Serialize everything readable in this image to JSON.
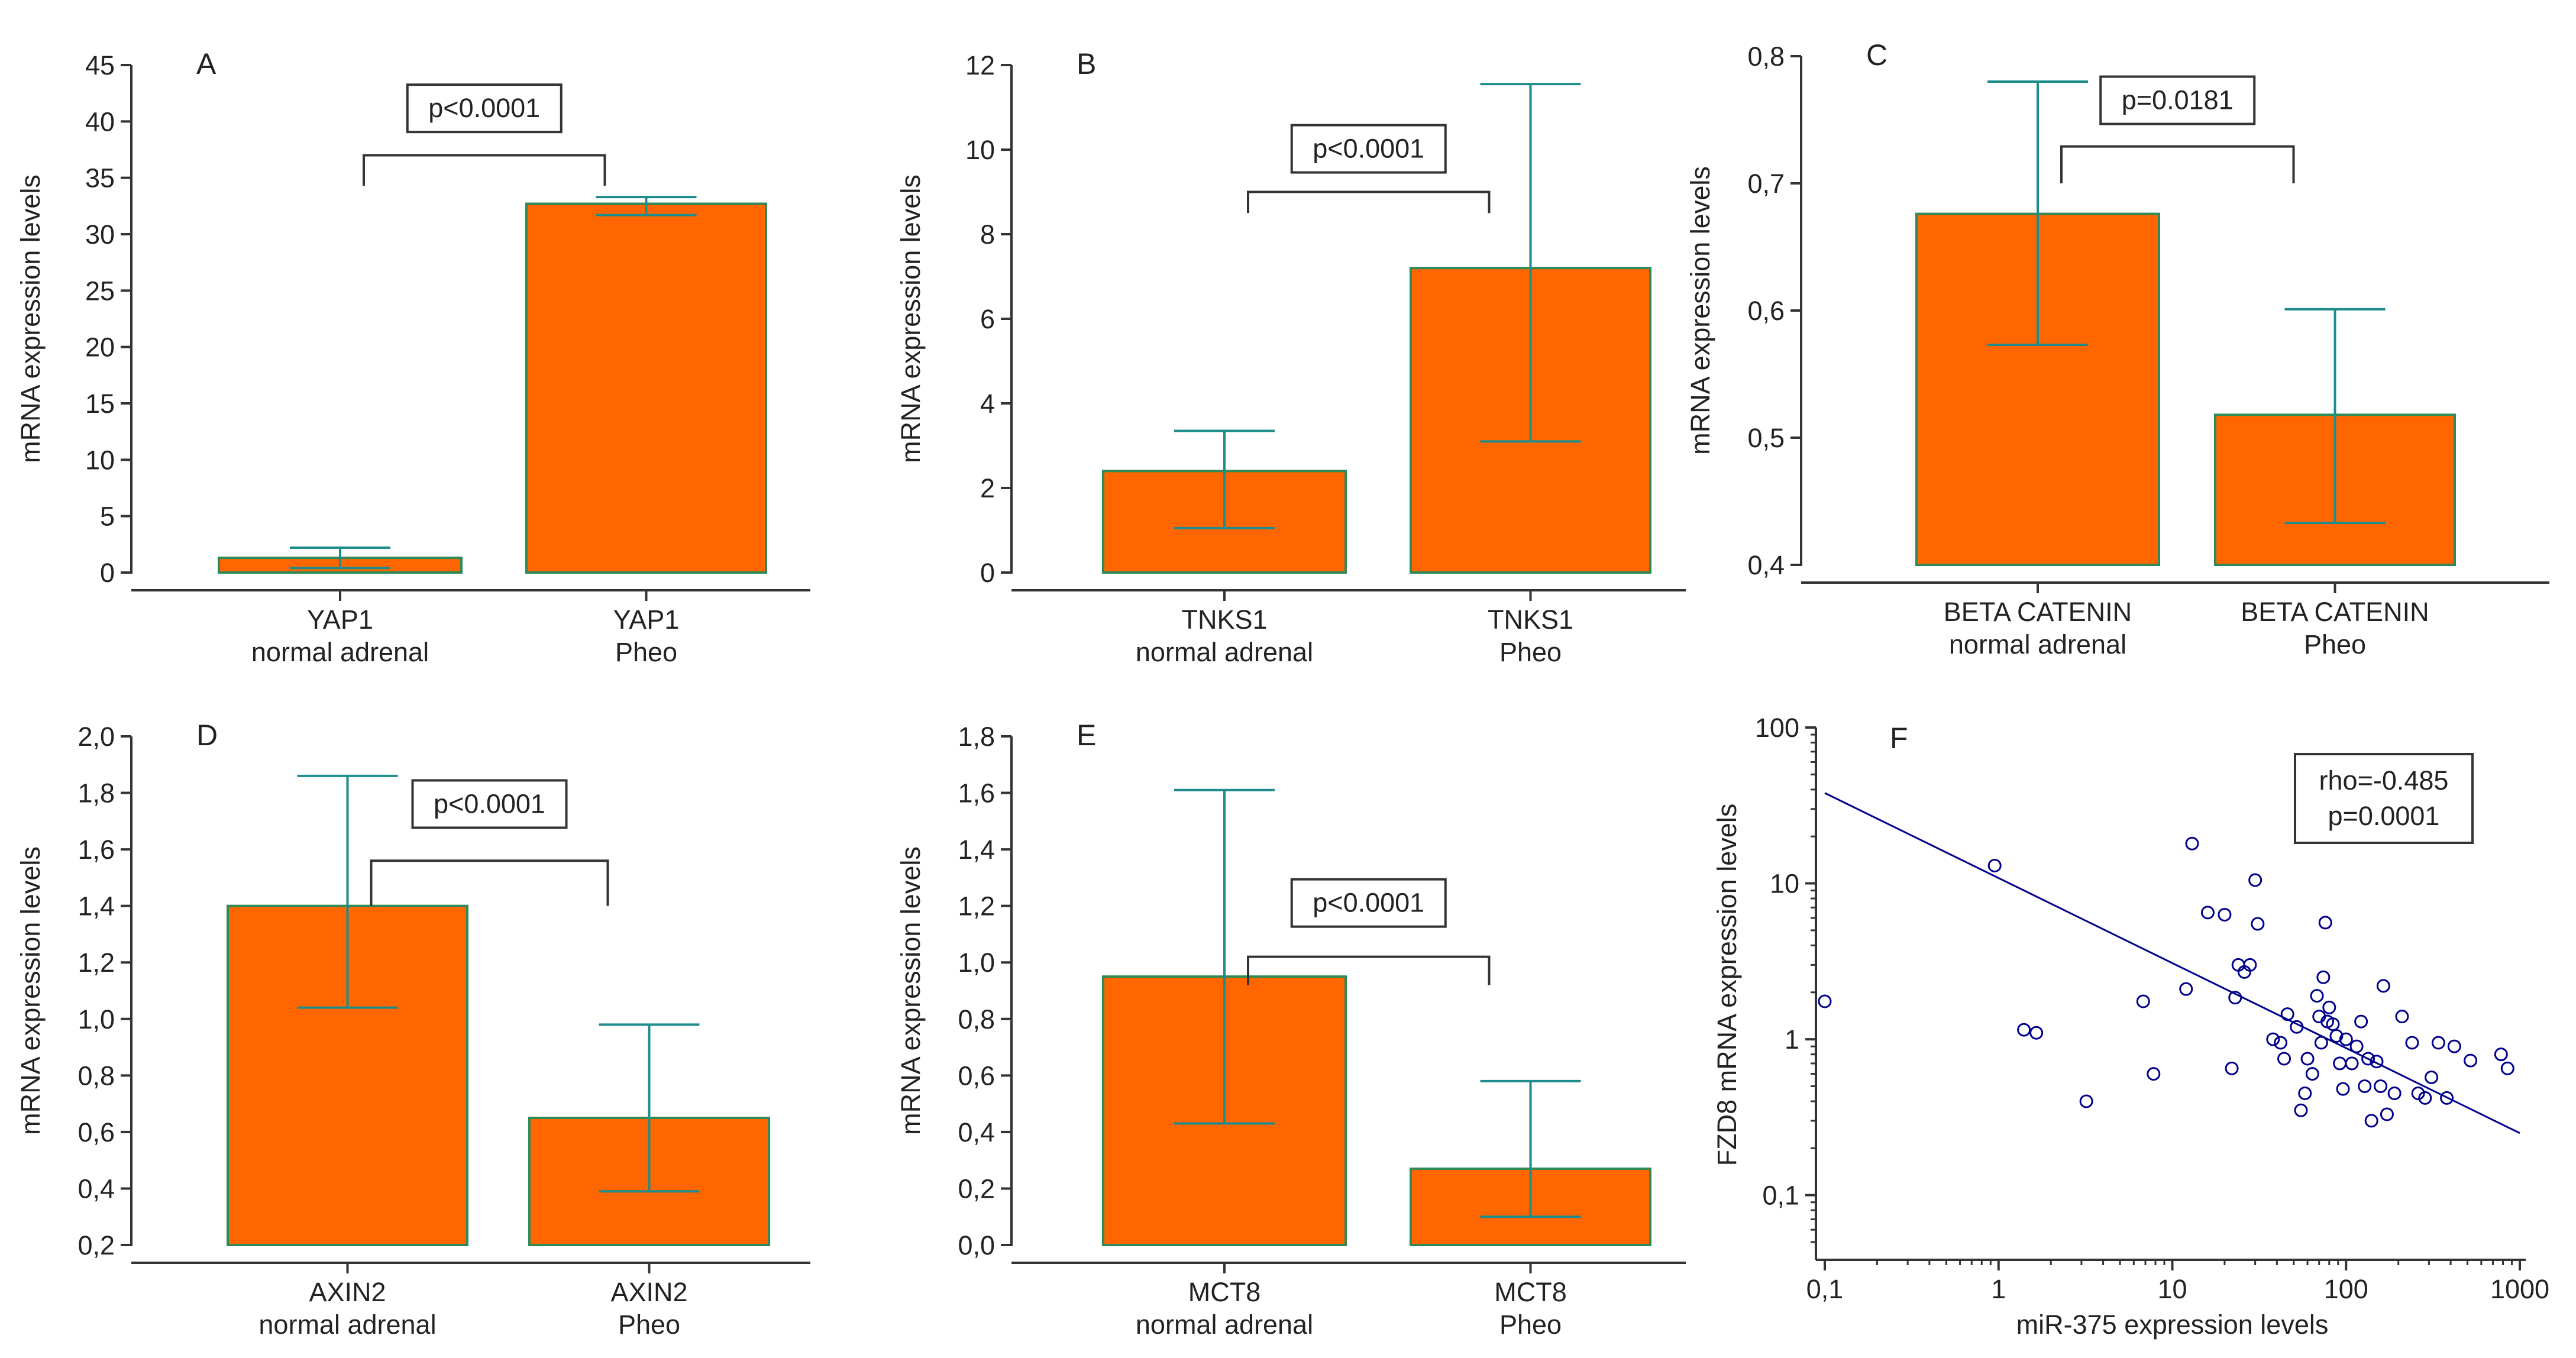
{
  "colors": {
    "bar_fill": "#FF6600",
    "bar_stroke": "#2E8B57",
    "error_bar": "#1E8C8C",
    "axis": "#333333",
    "text": "#222222",
    "scatter": "#00008B",
    "fit_line": "#00008B"
  },
  "chart_data": [
    {
      "id": "A",
      "type": "bar",
      "panel_label": "A",
      "ylabel": "mRNA expression levels",
      "ylim": [
        0,
        45
      ],
      "yticks": [
        0,
        5,
        10,
        15,
        20,
        25,
        30,
        35,
        40,
        45
      ],
      "ytick_labels": [
        "0",
        "5",
        "10",
        "15",
        "20",
        "25",
        "30",
        "35",
        "40",
        "45"
      ],
      "categories": [
        {
          "line1": "YAP1",
          "line2": "normal adrenal"
        },
        {
          "line1": "YAP1",
          "line2": "Pheo"
        }
      ],
      "values": [
        1.3,
        32.7
      ],
      "error_low": [
        0.4,
        31.7
      ],
      "error_high": [
        2.2,
        33.3
      ],
      "significance": {
        "label": "p<0.0001",
        "y": 37,
        "y_ends": 34.3,
        "label_y": 40.9
      }
    },
    {
      "id": "B",
      "type": "bar",
      "panel_label": "B",
      "ylabel": "mRNA expression levels",
      "ylim": [
        0,
        12
      ],
      "yticks": [
        0,
        2,
        4,
        6,
        8,
        10,
        12
      ],
      "ytick_labels": [
        "0",
        "2",
        "4",
        "6",
        "8",
        "10",
        "12"
      ],
      "categories": [
        {
          "line1": "TNKS1",
          "line2": "normal adrenal"
        },
        {
          "line1": "TNKS1",
          "line2": "Pheo"
        }
      ],
      "values": [
        2.4,
        7.2
      ],
      "error_low": [
        1.05,
        3.1
      ],
      "error_high": [
        3.35,
        11.55
      ],
      "significance": {
        "label": "p<0.0001",
        "y": 9.0,
        "y_ends": 8.5,
        "label_y": 9.95
      }
    },
    {
      "id": "C",
      "type": "bar",
      "panel_label": "C",
      "ylabel": "mRNA expression levels",
      "ylim": [
        0.4,
        0.8
      ],
      "yticks": [
        0.4,
        0.5,
        0.6,
        0.7,
        0.8
      ],
      "ytick_labels": [
        "0,4",
        "0,5",
        "0,6",
        "0,7",
        "0,8"
      ],
      "categories": [
        {
          "line1": "BETA CATENIN",
          "line2": "normal adrenal"
        },
        {
          "line1": "BETA CATENIN",
          "line2": "Pheo"
        }
      ],
      "values": [
        0.676,
        0.518
      ],
      "error_low": [
        0.573,
        0.433
      ],
      "error_high": [
        0.78,
        0.601
      ],
      "significance": {
        "label": "p=0.0181",
        "y": 0.729,
        "y_ends": 0.7,
        "label_y": 0.763
      }
    },
    {
      "id": "D",
      "type": "bar",
      "panel_label": "D",
      "ylabel": "mRNA expression levels",
      "ylim": [
        0.2,
        2.0
      ],
      "yticks": [
        0.2,
        0.4,
        0.6,
        0.8,
        1.0,
        1.2,
        1.4,
        1.6,
        1.8,
        2.0
      ],
      "ytick_labels": [
        "0,2",
        "0,4",
        "0,6",
        "0,8",
        "1,0",
        "1,2",
        "1,4",
        "1,6",
        "1,8",
        "2,0"
      ],
      "categories": [
        {
          "line1": "AXIN2",
          "line2": "normal adrenal"
        },
        {
          "line1": "AXIN2",
          "line2": "Pheo"
        }
      ],
      "values": [
        1.4,
        0.65
      ],
      "error_low": [
        1.04,
        0.39
      ],
      "error_high": [
        1.86,
        0.98
      ],
      "significance": {
        "label": "p<0.0001",
        "y": 1.56,
        "y_ends": 1.4,
        "label_y": 1.75
      }
    },
    {
      "id": "E",
      "type": "bar",
      "panel_label": "E",
      "ylabel": "mRNA expression levels",
      "ylim": [
        0,
        1.8
      ],
      "yticks": [
        0,
        0.2,
        0.4,
        0.6,
        0.8,
        1.0,
        1.2,
        1.4,
        1.6,
        1.8
      ],
      "ytick_labels": [
        "0,0",
        "0,2",
        "0,4",
        "0,6",
        "0,8",
        "1,0",
        "1,2",
        "1,4",
        "1,6",
        "1,8"
      ],
      "categories": [
        {
          "line1": "MCT8",
          "line2": "normal adrenal"
        },
        {
          "line1": "MCT8",
          "line2": "Pheo"
        }
      ],
      "values": [
        0.95,
        0.27
      ],
      "error_low": [
        0.43,
        0.1
      ],
      "error_high": [
        1.61,
        0.58
      ],
      "significance": {
        "label": "p<0.0001",
        "y": 1.02,
        "y_ends": 0.92,
        "label_y": 1.2
      }
    },
    {
      "id": "F",
      "type": "scatter",
      "panel_label": "F",
      "xscale": "log",
      "yscale": "log",
      "xlabel": "miR-375 expression levels",
      "ylabel": "FZD8 mRNA expression levels",
      "xlim": [
        0.1,
        1000
      ],
      "ylim": [
        0.05,
        100
      ],
      "xticks": [
        0.1,
        1,
        10,
        100,
        1000
      ],
      "xtick_labels": [
        "0,1",
        "1",
        "10",
        "100",
        "1000"
      ],
      "yticks": [
        0.1,
        1,
        10,
        100
      ],
      "ytick_labels": [
        "0,1",
        "1",
        "10",
        "100"
      ],
      "annotation": [
        "rho=-0.485",
        "p=0.0001"
      ],
      "fit_line": {
        "x": [
          0.1,
          1000
        ],
        "y": [
          38,
          0.25
        ]
      },
      "points": [
        [
          0.1,
          1.75
        ],
        [
          0.95,
          13
        ],
        [
          1.4,
          1.15
        ],
        [
          1.65,
          1.1
        ],
        [
          3.2,
          0.4
        ],
        [
          6.8,
          1.75
        ],
        [
          7.8,
          0.6
        ],
        [
          12,
          2.1
        ],
        [
          13,
          18
        ],
        [
          16,
          6.5
        ],
        [
          20,
          6.3
        ],
        [
          22,
          0.65
        ],
        [
          23,
          1.85
        ],
        [
          24,
          3.0
        ],
        [
          26,
          2.7
        ],
        [
          28,
          3.0
        ],
        [
          30,
          10.5
        ],
        [
          31,
          5.5
        ],
        [
          38,
          1.0
        ],
        [
          42,
          0.95
        ],
        [
          44,
          0.75
        ],
        [
          46,
          1.45
        ],
        [
          52,
          1.2
        ],
        [
          55,
          0.35
        ],
        [
          58,
          0.45
        ],
        [
          60,
          0.75
        ],
        [
          64,
          0.6
        ],
        [
          68,
          1.9
        ],
        [
          70,
          1.4
        ],
        [
          72,
          0.95
        ],
        [
          74,
          2.5
        ],
        [
          76,
          5.6
        ],
        [
          78,
          1.3
        ],
        [
          80,
          1.6
        ],
        [
          84,
          1.25
        ],
        [
          88,
          1.05
        ],
        [
          92,
          0.7
        ],
        [
          96,
          0.48
        ],
        [
          100,
          1.0
        ],
        [
          108,
          0.7
        ],
        [
          115,
          0.9
        ],
        [
          122,
          1.3
        ],
        [
          128,
          0.5
        ],
        [
          134,
          0.75
        ],
        [
          140,
          0.3
        ],
        [
          150,
          0.72
        ],
        [
          158,
          0.5
        ],
        [
          164,
          2.2
        ],
        [
          172,
          0.33
        ],
        [
          190,
          0.45
        ],
        [
          210,
          1.4
        ],
        [
          240,
          0.95
        ],
        [
          260,
          0.45
        ],
        [
          285,
          0.42
        ],
        [
          310,
          0.57
        ],
        [
          340,
          0.95
        ],
        [
          380,
          0.42
        ],
        [
          420,
          0.9
        ],
        [
          520,
          0.73
        ],
        [
          780,
          0.8
        ],
        [
          850,
          0.65
        ]
      ]
    }
  ]
}
